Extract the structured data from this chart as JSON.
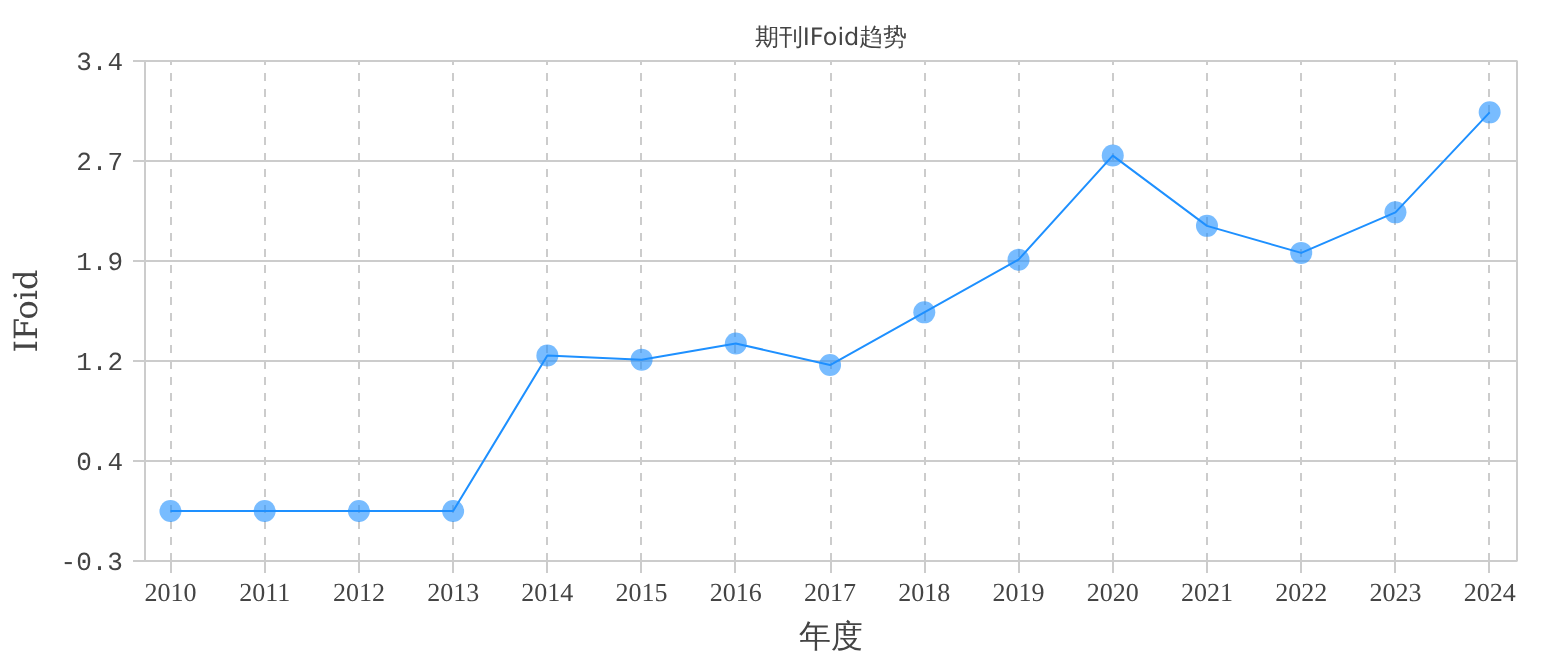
{
  "chart_data": {
    "type": "line",
    "title": "期刊IFoid趋势",
    "xlabel": "年度",
    "ylabel": "IFoid",
    "x": [
      2010,
      2011,
      2012,
      2013,
      2014,
      2015,
      2016,
      2017,
      2018,
      2019,
      2020,
      2021,
      2022,
      2023,
      2024
    ],
    "series": [
      {
        "color": "#1e90ff",
        "values": [
          0.07,
          0.07,
          0.07,
          0.07,
          1.22,
          1.19,
          1.31,
          1.15,
          1.54,
          1.93,
          2.7,
          2.18,
          1.98,
          2.28,
          3.02
        ]
      }
    ],
    "xlim": [
      2009.73,
      2024.29
    ],
    "xticks": [
      2010,
      2011,
      2012,
      2013,
      2014,
      2015,
      2016,
      2017,
      2018,
      2019,
      2020,
      2021,
      2022,
      2023,
      2024
    ],
    "ylim": [
      -0.3,
      3.4
    ],
    "yticks": [
      {
        "value": -0.3,
        "label": "-0.3"
      },
      {
        "value": 0.44,
        "label": "0.4"
      },
      {
        "value": 1.18,
        "label": "1.2"
      },
      {
        "value": 1.92,
        "label": "1.9"
      },
      {
        "value": 2.66,
        "label": "2.7"
      },
      {
        "value": 3.4,
        "label": "3.4"
      }
    ],
    "grid": true,
    "marker": "circle",
    "line_style": "solid"
  }
}
